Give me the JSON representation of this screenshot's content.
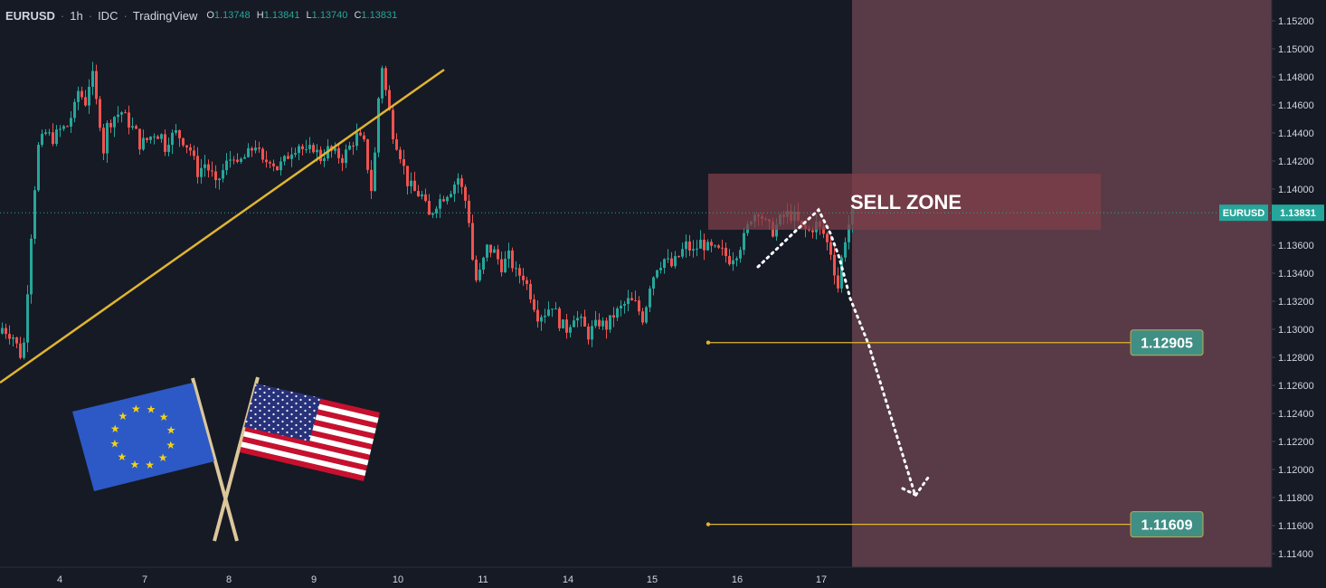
{
  "header": {
    "symbol": "EURUSD",
    "interval": "1h",
    "exchange": "IDC",
    "source": "TradingView",
    "ohlc": {
      "o_label": "O",
      "o": "1.13748",
      "h_label": "H",
      "h": "1.13841",
      "l_label": "L",
      "l": "1.13740",
      "c_label": "C",
      "c": "1.13831"
    }
  },
  "annotations": {
    "sell_zone_label": "SELL ZONE",
    "target1": "1.12905",
    "target2": "1.11609",
    "flag_icons": [
      "eu-flag-icon",
      "us-flag-icon"
    ]
  },
  "colors": {
    "background": "#161a25",
    "up": "#26a69a",
    "down": "#ef5350",
    "trendline": "#e0b530",
    "sell_zone": "#7d3f49",
    "shaded_area": "#5c3d48",
    "target_label": "#3f8f85"
  },
  "chart_data": {
    "type": "candlestick",
    "symbol": "EURUSD",
    "interval": "1h",
    "y_ticks": [
      "1.15200",
      "1.15000",
      "1.14800",
      "1.14600",
      "1.14400",
      "1.14200",
      "1.14000",
      "1.13800",
      "1.13600",
      "1.13400",
      "1.13200",
      "1.13000",
      "1.12800",
      "1.12600",
      "1.12400",
      "1.12200",
      "1.12000",
      "1.11800",
      "1.11600",
      "1.11400"
    ],
    "ylim": [
      1.1135,
      1.1528
    ],
    "x_ticks": [
      "4",
      "7",
      "8",
      "9",
      "10",
      "11",
      "14",
      "15",
      "16",
      "17"
    ],
    "current_price": {
      "symbol_label": "EURUSD",
      "price": "1.13831"
    },
    "sell_zone": {
      "low": 1.1371,
      "high": 1.1411
    },
    "targets": [
      1.12905,
      1.11609
    ],
    "close_path": [
      [
        0,
        1.1301
      ],
      [
        3,
        1.1295
      ],
      [
        5,
        1.1282
      ],
      [
        6,
        1.129
      ],
      [
        8,
        1.1368
      ],
      [
        9,
        1.1402
      ],
      [
        10,
        1.143
      ],
      [
        12,
        1.144
      ],
      [
        14,
        1.1436
      ],
      [
        16,
        1.1442
      ],
      [
        18,
        1.1445
      ],
      [
        20,
        1.1458
      ],
      [
        21,
        1.147
      ],
      [
        22,
        1.1466
      ],
      [
        23,
        1.1462
      ],
      [
        24,
        1.1475
      ],
      [
        25,
        1.148
      ],
      [
        26,
        1.1462
      ],
      [
        27,
        1.1448
      ],
      [
        28,
        1.1428
      ],
      [
        29,
        1.1445
      ],
      [
        31,
        1.1452
      ],
      [
        33,
        1.1455
      ],
      [
        35,
        1.1447
      ],
      [
        37,
        1.144
      ],
      [
        38,
        1.1432
      ],
      [
        40,
        1.1435
      ],
      [
        42,
        1.144
      ],
      [
        44,
        1.1438
      ],
      [
        45,
        1.143
      ],
      [
        46,
        1.1436
      ],
      [
        48,
        1.144
      ],
      [
        50,
        1.1435
      ],
      [
        52,
        1.1428
      ],
      [
        54,
        1.1412
      ],
      [
        56,
        1.1418
      ],
      [
        58,
        1.141
      ],
      [
        59,
        1.1402
      ],
      [
        60,
        1.1408
      ],
      [
        62,
        1.1418
      ],
      [
        64,
        1.1425
      ],
      [
        65,
        1.1415
      ],
      [
        66,
        1.142
      ],
      [
        68,
        1.1425
      ],
      [
        70,
        1.1432
      ],
      [
        72,
        1.1418
      ],
      [
        74,
        1.1422
      ],
      [
        76,
        1.1415
      ],
      [
        78,
        1.142
      ],
      [
        80,
        1.1428
      ],
      [
        82,
        1.1432
      ],
      [
        84,
        1.1425
      ],
      [
        86,
        1.143
      ],
      [
        88,
        1.1422
      ],
      [
        90,
        1.1428
      ],
      [
        92,
        1.1425
      ],
      [
        94,
        1.1422
      ],
      [
        96,
        1.143
      ],
      [
        98,
        1.1438
      ],
      [
        100,
        1.1432
      ],
      [
        102,
        1.14
      ],
      [
        103,
        1.1425
      ],
      [
        104,
        1.1465
      ],
      [
        105,
        1.1488
      ],
      [
        106,
        1.147
      ],
      [
        107,
        1.1455
      ],
      [
        108,
        1.144
      ],
      [
        110,
        1.1425
      ],
      [
        112,
        1.1405
      ],
      [
        114,
        1.1398
      ],
      [
        116,
        1.1395
      ],
      [
        118,
        1.138
      ],
      [
        120,
        1.139
      ],
      [
        122,
        1.1395
      ],
      [
        124,
        1.14
      ],
      [
        126,
        1.1408
      ],
      [
        128,
        1.1392
      ],
      [
        129,
        1.1378
      ],
      [
        130,
        1.135
      ],
      [
        131,
        1.1335
      ],
      [
        132,
        1.134
      ],
      [
        134,
        1.1358
      ],
      [
        136,
        1.1355
      ],
      [
        138,
        1.1345
      ],
      [
        140,
        1.1352
      ],
      [
        142,
        1.134
      ],
      [
        144,
        1.1338
      ],
      [
        146,
        1.1325
      ],
      [
        148,
        1.131
      ],
      [
        150,
        1.1312
      ],
      [
        152,
        1.1318
      ],
      [
        154,
        1.1305
      ],
      [
        156,
        1.13
      ],
      [
        158,
        1.131
      ],
      [
        160,
        1.1305
      ],
      [
        162,
        1.1296
      ],
      [
        163,
        1.13
      ],
      [
        165,
        1.1305
      ],
      [
        167,
        1.1302
      ],
      [
        169,
        1.131
      ],
      [
        171,
        1.1315
      ],
      [
        173,
        1.132
      ],
      [
        175,
        1.1318
      ],
      [
        177,
        1.1308
      ],
      [
        178,
        1.1318
      ],
      [
        179,
        1.1332
      ],
      [
        181,
        1.1345
      ],
      [
        183,
        1.135
      ],
      [
        185,
        1.1345
      ],
      [
        187,
        1.1352
      ],
      [
        189,
        1.136
      ],
      [
        191,
        1.1355
      ],
      [
        193,
        1.1362
      ],
      [
        195,
        1.1358
      ],
      [
        197,
        1.1356
      ],
      [
        199,
        1.1355
      ],
      [
        201,
        1.135
      ],
      [
        203,
        1.1355
      ],
      [
        205,
        1.1365
      ],
      [
        207,
        1.138
      ],
      [
        209,
        1.1385
      ],
      [
        211,
        1.1375
      ],
      [
        213,
        1.137
      ],
      [
        215,
        1.1378
      ],
      [
        217,
        1.1382
      ],
      [
        219,
        1.138
      ],
      [
        221,
        1.1372
      ],
      [
        223,
        1.137
      ],
      [
        225,
        1.1375
      ],
      [
        227,
        1.1368
      ],
      [
        229,
        1.1355
      ],
      [
        230,
        1.1342
      ],
      [
        231,
        1.133
      ],
      [
        232,
        1.135
      ],
      [
        233,
        1.1365
      ],
      [
        234,
        1.1375
      ],
      [
        235,
        1.1383
      ]
    ]
  }
}
